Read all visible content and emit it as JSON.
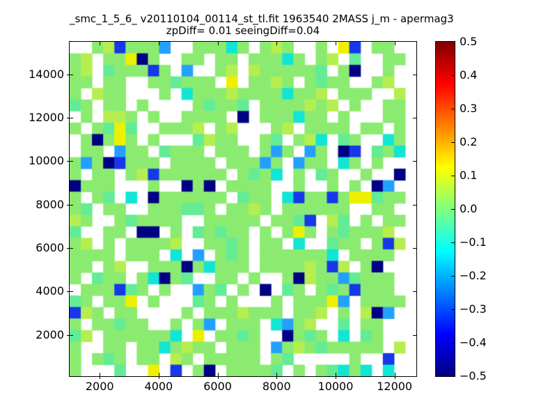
{
  "figure": {
    "title_line1": "_smc_1_5_6_ v20110104_00114_st_tl.fit 1963540 2MASS j_m - apermag3",
    "title_line2": "zpDiff= 0.01 seeingDiff=0.04"
  },
  "chart_data": {
    "type": "heatmap",
    "title": "_smc_1_5_6_ v20110104_00114_st_tl.fit 1963540 2MASS j_m - apermag3",
    "subtitle": "zpDiff= 0.01 seeingDiff=0.04",
    "xlabel": "",
    "ylabel": "",
    "xlim": [
      980,
      12740
    ],
    "ylim": [
      100,
      15500
    ],
    "x_ticks": [
      2000,
      4000,
      6000,
      8000,
      10000,
      12000
    ],
    "x_tick_labels": [
      "2000",
      "4000",
      "6000",
      "8000",
      "10000",
      "12000"
    ],
    "y_ticks": [
      2000,
      4000,
      6000,
      8000,
      10000,
      12000,
      14000
    ],
    "y_tick_labels": [
      "2000",
      "4000",
      "6000",
      "8000",
      "10000",
      "12000",
      "14000"
    ],
    "grid_lines": "off",
    "legend": "colorbar-right",
    "colorbar": {
      "min": -0.5,
      "max": 0.5,
      "tick_values": [
        0.5,
        0.4,
        0.3,
        0.2,
        0.1,
        0.0,
        -0.1,
        -0.2,
        -0.3,
        -0.4,
        -0.5
      ],
      "tick_labels": [
        "0.5",
        "0.4",
        "0.3",
        "0.2",
        "0.1",
        "0.0",
        "−0.1",
        "−0.2",
        "−0.3",
        "−0.4",
        "−0.5"
      ],
      "colormap": "jet",
      "gradient_stops": [
        {
          "pos": 0.0,
          "color": "#000080"
        },
        {
          "pos": 0.125,
          "color": "#0000ff"
        },
        {
          "pos": 0.375,
          "color": "#00ffff"
        },
        {
          "pos": 0.625,
          "color": "#ffff00"
        },
        {
          "pos": 0.875,
          "color": "#ff0000"
        },
        {
          "pos": 1.0,
          "color": "#800000"
        }
      ]
    },
    "grid": {
      "rows": 29,
      "cols": 31,
      "row_order": "top-to-bottom",
      "null_char": ".",
      "palette": {
        "g": {
          "color": "#8BEB70",
          "value": 0.02
        },
        "G": {
          "color": "#B5EE4F",
          "value": 0.08
        },
        "y": {
          "color": "#EDF000",
          "value": 0.15
        },
        "s": {
          "color": "#63EB96",
          "value": -0.04
        },
        "c": {
          "color": "#12E5D4",
          "value": -0.13
        },
        "l": {
          "color": "#23A0FF",
          "value": -0.24
        },
        "b": {
          "color": "#1638E8",
          "value": -0.36
        },
        "n": {
          "color": "#000085",
          "value": -0.5
        },
        ".": {
          "color": null,
          "value": null
        }
      },
      "cell_codes": [
        "..gGbgggl..gggcg.gGg..g.yb.gg..",
        "gG.ggyng..gg.gg.gggcg.gG.s..gg.",
        "gG.sgggbg.l..gG.Ggggggs.gn..g..",
        "gg.gg..ggsggg.y.ggGg.gsgg..gG..",
        "g.Ggg...g.cgggGggggcggG.ggg..G.",
        "sg.gg.g....gsggs.ggggGgG.g..gg.",
        ".g.GGg.g..gggg.n.gggcgg.g...gg.",
        "g.gsys..gggG.gG...gG.gggg.gg.g.",
        ".gngyg.g...sGgg..gs.gGc.sg..cg.",
        ".gg.lgg.sggg.ggg.glg.lg.nb.sgc.",
        "glgnbggg.gggg.ggglg.lgg.cg.g...",
        "g.gg.gGbgggggg.gsgc.g.sg..g..n.",
        "nggg...g..ngn.gggg..g..g.g.nl..",
        "g.gs.c.ngggggg.sgg.cbggbgyysgg.",
        "gs.gg..gggssg.ggGg.gggggg..gg..",
        "Gg..gsgggg..ggggg.ggsb.Gs.g.gg.",
        "s..gg.nn.g.sgsgg.g.gyg.gsgggG..",
        "gG.g.ggggG..ggsg.gg.c..sgg.gbG.",
        "gggg.ggg.c.l.gsg.ggggggc.gggg..",
        "gg.gG..gggngcggg.ggggGgbG.gn...",
        "g.sgg.gcngs..gg.g..gnGgglsggg..",
        ".gggbsg.g..lgs.g.n.sg.gsgbggg..",
        "sg.ggy.g...sg.g...g.gggyl.gggg.",
        "bGg.gg....g.gggGggg.ggG.g.Gnl..",
        "g.ggsgg..g.gl.ggg.clgG..s.gg...",
        "sG.ggggggc.y.ggsg..ngsg.c.sg...",
        "g..gg.ggcgGgg.ggg.lgGgsggggg.G.",
        "g.gsg.gg.Gg.ggggg.gs.....g..b..",
        "g...s..y.b.gn.ggggs.g.gscgc.c.."
      ]
    }
  }
}
